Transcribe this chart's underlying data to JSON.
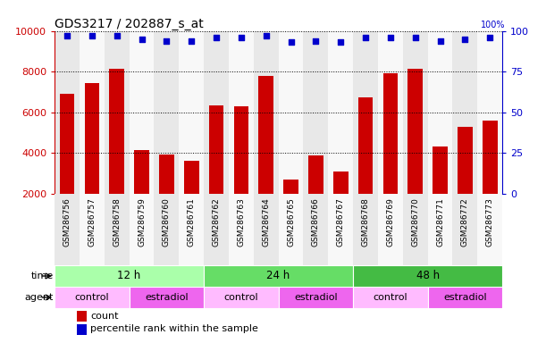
{
  "title": "GDS3217 / 202887_s_at",
  "samples": [
    "GSM286756",
    "GSM286757",
    "GSM286758",
    "GSM286759",
    "GSM286760",
    "GSM286761",
    "GSM286762",
    "GSM286763",
    "GSM286764",
    "GSM286765",
    "GSM286766",
    "GSM286767",
    "GSM286768",
    "GSM286769",
    "GSM286770",
    "GSM286771",
    "GSM286772",
    "GSM286773"
  ],
  "counts": [
    6900,
    7450,
    8150,
    4150,
    3950,
    3620,
    6350,
    6280,
    7800,
    2700,
    3900,
    3100,
    6750,
    7900,
    8150,
    4350,
    5300,
    5580
  ],
  "percentiles": [
    97,
    97,
    97,
    95,
    94,
    94,
    96,
    96,
    97,
    93,
    94,
    93,
    96,
    96,
    96,
    94,
    95,
    96
  ],
  "bar_color": "#cc0000",
  "dot_color": "#0000cc",
  "ylim_left": [
    2000,
    10000
  ],
  "ylim_right": [
    0,
    100
  ],
  "yticks_left": [
    2000,
    4000,
    6000,
    8000,
    10000
  ],
  "yticks_right": [
    0,
    25,
    50,
    75,
    100
  ],
  "grid_color": "#000000",
  "bg_color": "#ffffff",
  "col_bg_even": "#e8e8e8",
  "col_bg_odd": "#f8f8f8",
  "time_groups": [
    {
      "label": "12 h",
      "start": 0,
      "end": 6,
      "color": "#aaffaa"
    },
    {
      "label": "24 h",
      "start": 6,
      "end": 12,
      "color": "#66dd66"
    },
    {
      "label": "48 h",
      "start": 12,
      "end": 18,
      "color": "#44bb44"
    }
  ],
  "agent_groups": [
    {
      "label": "control",
      "start": 0,
      "end": 3,
      "color": "#ffbbff"
    },
    {
      "label": "estradiol",
      "start": 3,
      "end": 6,
      "color": "#ee66ee"
    },
    {
      "label": "control",
      "start": 6,
      "end": 9,
      "color": "#ffbbff"
    },
    {
      "label": "estradiol",
      "start": 9,
      "end": 12,
      "color": "#ee66ee"
    },
    {
      "label": "control",
      "start": 12,
      "end": 15,
      "color": "#ffbbff"
    },
    {
      "label": "estradiol",
      "start": 15,
      "end": 18,
      "color": "#ee66ee"
    }
  ],
  "legend_count_color": "#cc0000",
  "legend_dot_color": "#0000cc",
  "time_label": "time",
  "agent_label": "agent",
  "legend_count_text": "count",
  "legend_percentile_text": "percentile rank within the sample"
}
